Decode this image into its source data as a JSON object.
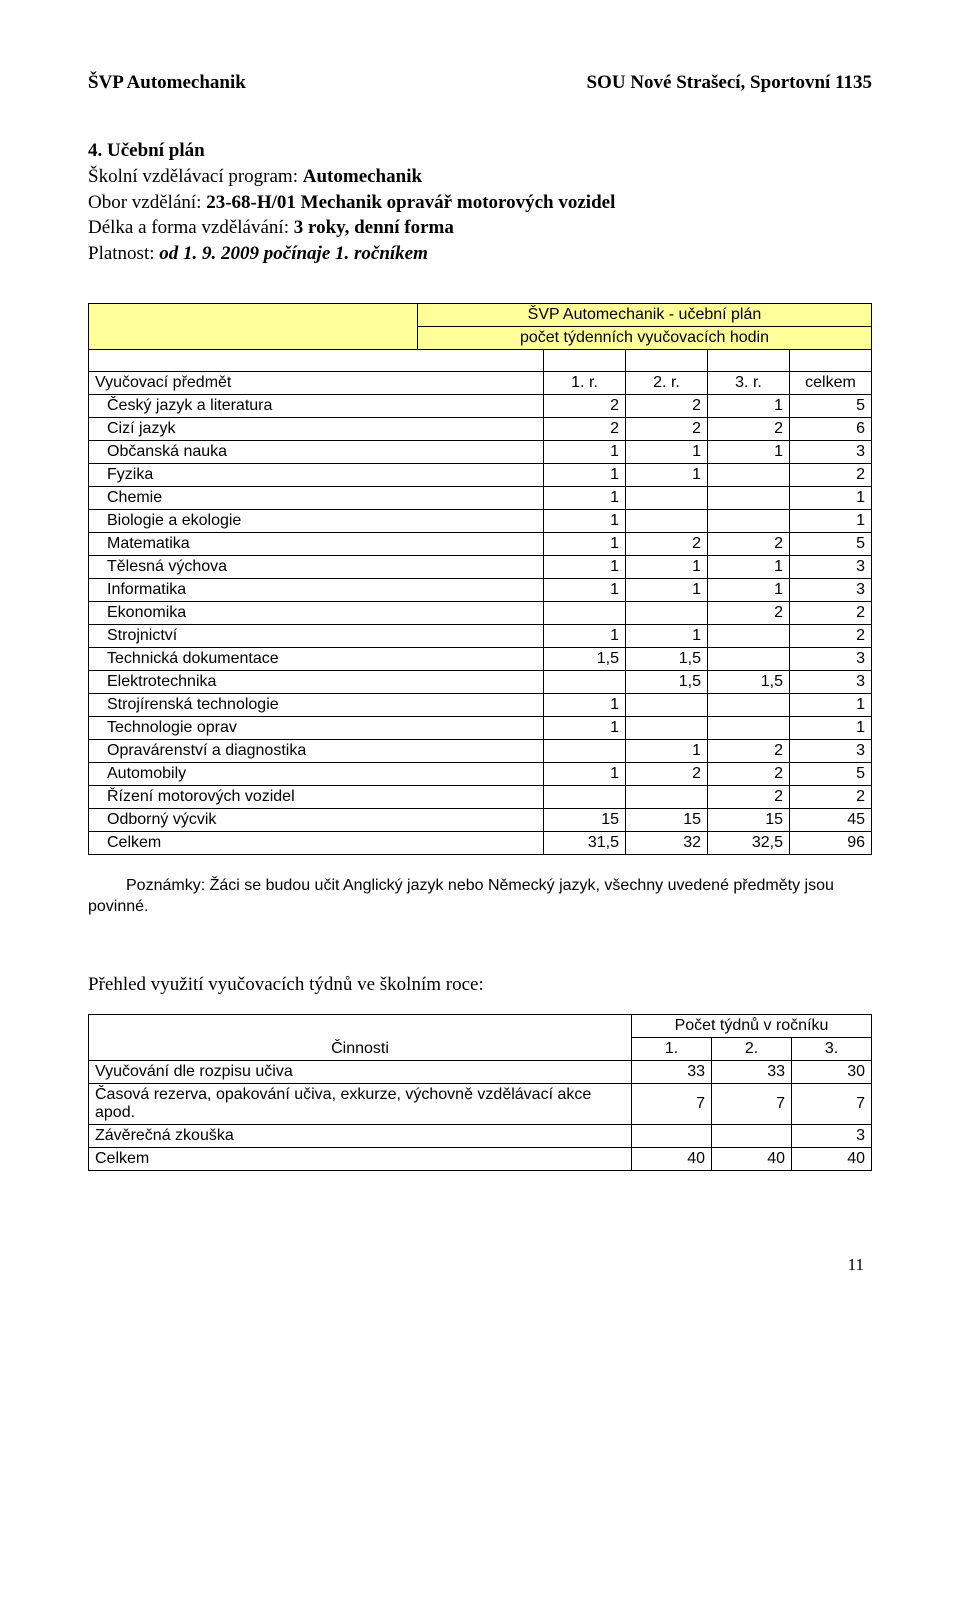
{
  "header": {
    "left": "ŠVP Automechanik",
    "right": "SOU Nové Strašecí, Sportovní 1135"
  },
  "section": {
    "heading": "4. Učební plán",
    "line1_prefix": "Školní vzdělávací program: ",
    "line1_value": "Automechanik",
    "line2_prefix": "Obor vzdělání: ",
    "line2_value": "23-68-H/01 Mechanik opravář motorových vozidel",
    "line3_prefix": "Délka a forma vzdělávání: ",
    "line3_value": "3 roky, denní forma",
    "line4_prefix": "Platnost: ",
    "line4_value": "od 1. 9. 2009 počínaje 1. ročníkem"
  },
  "planTable": {
    "titleTop": "ŠVP Automechanik - učební plán",
    "titleBottom": "počet týdenních vyučovacích hodin",
    "headers": {
      "subject": "Vyučovací předmět",
      "c1": "1. r.",
      "c2": "2. r.",
      "c3": "3. r.",
      "total": "celkem"
    },
    "rows": [
      {
        "name": "Český jazyk a literatura",
        "v": [
          "2",
          "2",
          "1",
          "5"
        ]
      },
      {
        "name": "Cizí jazyk",
        "v": [
          "2",
          "2",
          "2",
          "6"
        ]
      },
      {
        "name": "Občanská nauka",
        "v": [
          "1",
          "1",
          "1",
          "3"
        ]
      },
      {
        "name": "Fyzika",
        "v": [
          "1",
          "1",
          "",
          "2"
        ]
      },
      {
        "name": "Chemie",
        "v": [
          "1",
          "",
          "",
          "1"
        ]
      },
      {
        "name": "Biologie a ekologie",
        "v": [
          "1",
          "",
          "",
          "1"
        ]
      },
      {
        "name": "Matematika",
        "v": [
          "1",
          "2",
          "2",
          "5"
        ]
      },
      {
        "name": "Tělesná výchova",
        "v": [
          "1",
          "1",
          "1",
          "3"
        ]
      },
      {
        "name": "Informatika",
        "v": [
          "1",
          "1",
          "1",
          "3"
        ]
      },
      {
        "name": "Ekonomika",
        "v": [
          "",
          "",
          "2",
          "2"
        ]
      },
      {
        "name": "Strojnictví",
        "v": [
          "1",
          "1",
          "",
          "2"
        ]
      },
      {
        "name": "Technická dokumentace",
        "v": [
          "1,5",
          "1,5",
          "",
          "3"
        ]
      },
      {
        "name": "Elektrotechnika",
        "v": [
          "",
          "1,5",
          "1,5",
          "3"
        ]
      },
      {
        "name": "Strojírenská technologie",
        "v": [
          "1",
          "",
          "",
          "1"
        ]
      },
      {
        "name": "Technologie oprav",
        "v": [
          "1",
          "",
          "",
          "1"
        ]
      },
      {
        "name": "Opravárenství a diagnostika",
        "v": [
          "",
          "1",
          "2",
          "3"
        ]
      },
      {
        "name": "Automobily",
        "v": [
          "1",
          "2",
          "2",
          "5"
        ]
      },
      {
        "name": "Řízení motorových vozidel",
        "v": [
          "",
          "",
          "2",
          "2"
        ]
      },
      {
        "name": "Odborný výcvik",
        "v": [
          "15",
          "15",
          "15",
          "45"
        ]
      },
      {
        "name": "Celkem",
        "v": [
          "31,5",
          "32",
          "32,5",
          "96"
        ]
      }
    ]
  },
  "note": "Poznámky: Žáci se budou učit Anglický jazyk nebo Německý jazyk, všechny uvedené předměty jsou povinné.",
  "weeks": {
    "heading": "Přehled využití vyučovacích týdnů ve školním roce:",
    "headerTop": "Počet týdnů v ročníku",
    "activityLabel": "Činnosti",
    "cols": [
      "1.",
      "2.",
      "3."
    ],
    "rows": [
      {
        "name": "Vyučování dle rozpisu učiva",
        "v": [
          "33",
          "33",
          "30"
        ]
      },
      {
        "name": "Časová rezerva, opakování učiva, exkurze, výchovně vzdělávací akce apod.",
        "v": [
          "7",
          "7",
          "7"
        ]
      },
      {
        "name": "Závěrečná zkouška",
        "v": [
          "",
          "",
          "3"
        ]
      },
      {
        "name": "Celkem",
        "v": [
          "40",
          "40",
          "40"
        ]
      }
    ]
  },
  "pageNumber": "11"
}
